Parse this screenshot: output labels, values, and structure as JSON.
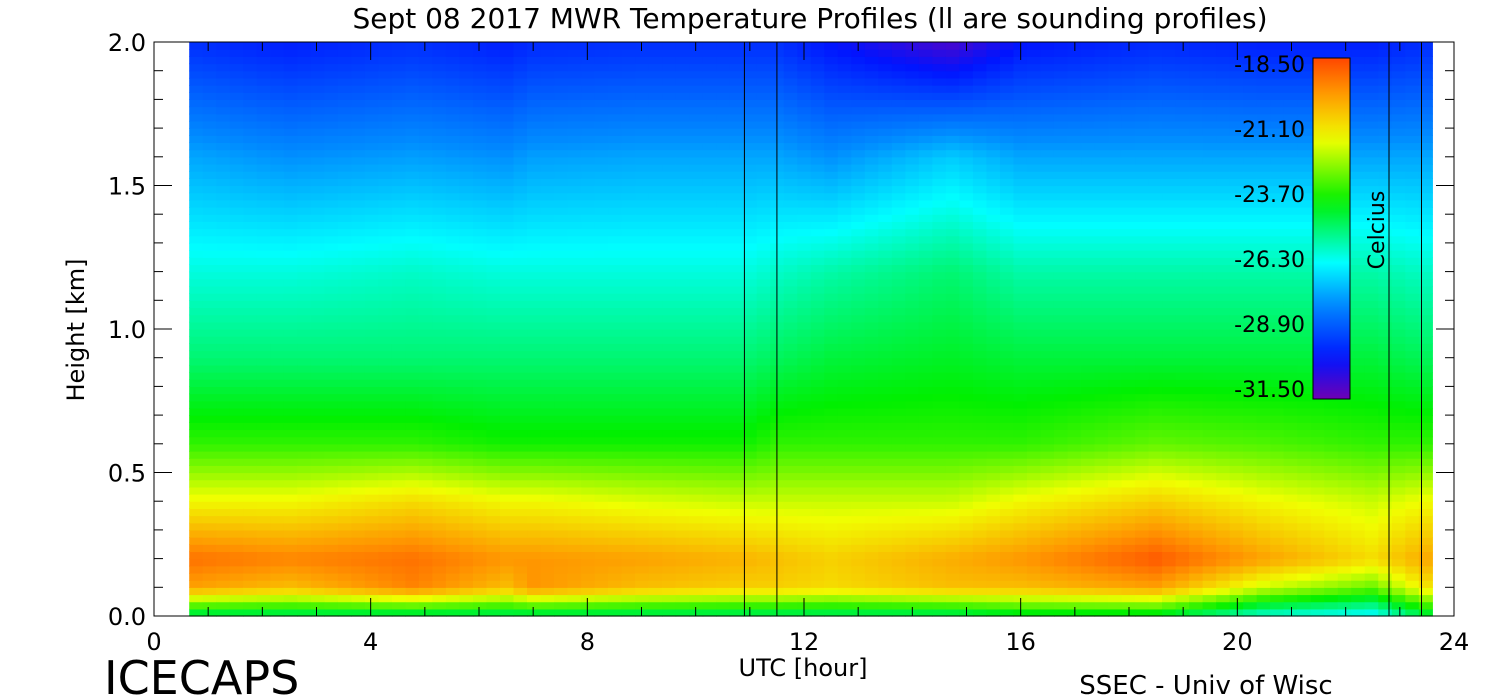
{
  "chart_data": {
    "type": "heatmap",
    "title": "Sept 08 2017 MWR Temperature Profiles (ll are sounding profiles)",
    "xlabel": "UTC [hour]",
    "ylabel": "Height [km]",
    "xlim": [
      0,
      24
    ],
    "ylim": [
      0,
      2
    ],
    "x_ticks": [
      "0",
      "4",
      "8",
      "12",
      "16",
      "20",
      "24"
    ],
    "y_ticks": [
      "0.0",
      "0.5",
      "1.0",
      "1.5",
      "2.0"
    ],
    "data_x_range": [
      0.65,
      23.6
    ],
    "sounding_lines_hour": [
      10.9,
      11.5,
      22.8,
      23.4
    ],
    "colorbar": {
      "label": "Celcius",
      "ticks": [
        "-18.50",
        "-21.10",
        "-23.70",
        "-26.30",
        "-28.90",
        "-31.50"
      ],
      "range": [
        -31.5,
        -18.5
      ]
    },
    "profile_columns": [
      {
        "hour": 0.7,
        "temps": [
          -25.0,
          -20.0,
          -19.2,
          -21.5,
          -23.5,
          -25.0,
          -26.0,
          -27.5,
          -29.5
        ]
      },
      {
        "hour": 2.5,
        "temps": [
          -25.0,
          -20.5,
          -19.5,
          -21.5,
          -23.5,
          -25.0,
          -26.0,
          -27.8,
          -29.8
        ]
      },
      {
        "hour": 4.8,
        "temps": [
          -25.0,
          -19.5,
          -19.2,
          -21.0,
          -23.5,
          -25.0,
          -25.8,
          -27.6,
          -29.5
        ]
      },
      {
        "hour": 6.5,
        "temps": [
          -25.0,
          -20.5,
          -19.8,
          -21.5,
          -23.8,
          -25.0,
          -26.0,
          -27.8,
          -29.8
        ]
      },
      {
        "hour": 7.0,
        "temps": [
          -25.0,
          -19.8,
          -19.8,
          -21.5,
          -23.8,
          -25.0,
          -26.0,
          -27.6,
          -29.6
        ]
      },
      {
        "hour": 9.0,
        "temps": [
          -25.0,
          -20.5,
          -20.0,
          -21.8,
          -23.8,
          -25.0,
          -26.0,
          -27.5,
          -29.5
        ]
      },
      {
        "hour": 10.9,
        "temps": [
          -25.0,
          -20.8,
          -20.3,
          -22.0,
          -23.8,
          -25.0,
          -26.0,
          -27.5,
          -29.5
        ]
      },
      {
        "hour": 11.5,
        "temps": [
          -25.0,
          -20.8,
          -20.5,
          -22.0,
          -23.5,
          -24.8,
          -25.8,
          -27.5,
          -29.5
        ]
      },
      {
        "hour": 12.5,
        "temps": [
          -25.0,
          -21.0,
          -20.8,
          -22.0,
          -23.5,
          -24.5,
          -25.5,
          -27.8,
          -30.0
        ]
      },
      {
        "hour": 14.7,
        "temps": [
          -25.0,
          -20.5,
          -20.2,
          -22.0,
          -23.5,
          -24.3,
          -25.0,
          -27.0,
          -31.0
        ]
      },
      {
        "hour": 16.0,
        "temps": [
          -24.5,
          -20.5,
          -19.8,
          -21.5,
          -23.5,
          -24.5,
          -25.5,
          -27.5,
          -30.0
        ]
      },
      {
        "hour": 18.5,
        "temps": [
          -24.5,
          -20.0,
          -18.8,
          -20.8,
          -23.0,
          -24.5,
          -25.5,
          -27.5,
          -29.6
        ]
      },
      {
        "hour": 20.5,
        "temps": [
          -26.0,
          -22.0,
          -20.0,
          -21.5,
          -23.2,
          -24.5,
          -25.5,
          -27.5,
          -29.8
        ]
      },
      {
        "hour": 22.5,
        "temps": [
          -26.5,
          -23.0,
          -21.0,
          -22.0,
          -23.5,
          -24.5,
          -25.5,
          -27.5,
          -29.8
        ]
      },
      {
        "hour": 23.6,
        "temps": [
          -24.5,
          -21.0,
          -20.0,
          -21.5,
          -23.5,
          -24.8,
          -25.8,
          -27.5,
          -29.5
        ]
      }
    ],
    "profile_heights_km": [
      0.0,
      0.1,
      0.2,
      0.4,
      0.6,
      0.9,
      1.2,
      1.6,
      2.0
    ]
  },
  "footer": {
    "left_logo": "ICECAPS",
    "right_credit": "SSEC - Univ of Wisc"
  }
}
